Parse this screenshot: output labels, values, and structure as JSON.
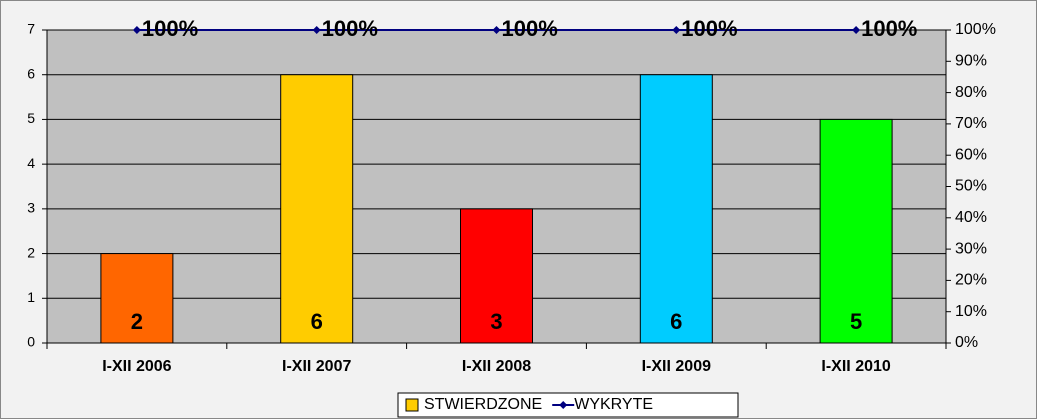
{
  "chart_data": {
    "type": "bar",
    "categories": [
      "I-XII 2006",
      "I-XII 2007",
      "I-XII 2008",
      "I-XII 2009",
      "I-XII 2010"
    ],
    "series": [
      {
        "name": "STWIERDZONE",
        "type": "bar",
        "color": "#ffcc00",
        "colors": [
          "#ff6600",
          "#ffcc00",
          "#ff0000",
          "#00ccff",
          "#00ff00"
        ],
        "values": [
          2,
          6,
          3,
          6,
          5
        ]
      },
      {
        "name": "WYKRYTE",
        "type": "line",
        "axis": "y2",
        "color": "#000080",
        "values": [
          100,
          100,
          100,
          100,
          100
        ],
        "value_labels": [
          "100%",
          "100%",
          "100%",
          "100%",
          "100%"
        ]
      }
    ],
    "ylim": [
      0,
      7
    ],
    "yticks": [
      0,
      1,
      2,
      3,
      4,
      5,
      6,
      7
    ],
    "y2lim": [
      0,
      100
    ],
    "y2ticks": [
      {
        "value": 0,
        "label": "0%"
      },
      {
        "value": 10,
        "label": "10%"
      },
      {
        "value": 20,
        "label": "20%"
      },
      {
        "value": 30,
        "label": "30%"
      },
      {
        "value": 40,
        "label": "40%"
      },
      {
        "value": 50,
        "label": "50%"
      },
      {
        "value": 60,
        "label": "60%"
      },
      {
        "value": 70,
        "label": "70%"
      },
      {
        "value": 80,
        "label": "80%"
      },
      {
        "value": 90,
        "label": "90%"
      },
      {
        "value": 100,
        "label": "100%"
      }
    ],
    "grid": true,
    "legend": "bottom"
  }
}
